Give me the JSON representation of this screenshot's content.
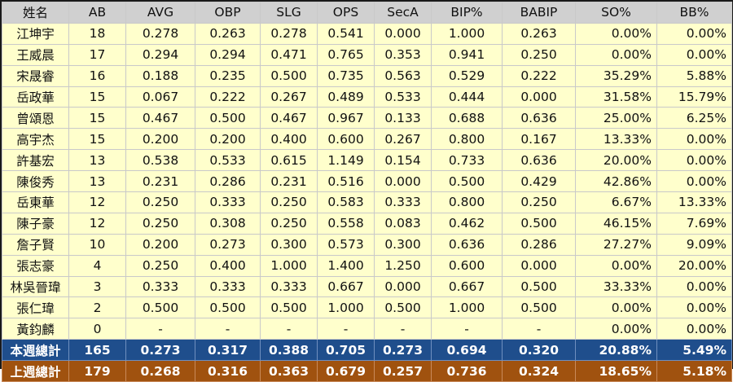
{
  "headers": [
    "姓名",
    "AB",
    "AVG",
    "OBP",
    "SLG",
    "OPS",
    "SecA",
    "BIP%",
    "BABIP",
    "SO%",
    "BB%"
  ],
  "players": [
    {
      "name": "江坤宇",
      "ab": "18",
      "avg": "0.278",
      "obp": "0.263",
      "slg": "0.278",
      "ops": "0.541",
      "seca": "0.000",
      "bip": "1.000",
      "babip": "0.263",
      "so": "0.00%",
      "bb": "0.00%"
    },
    {
      "name": "王威晨",
      "ab": "17",
      "avg": "0.294",
      "obp": "0.294",
      "slg": "0.471",
      "ops": "0.765",
      "seca": "0.353",
      "bip": "0.941",
      "babip": "0.250",
      "so": "0.00%",
      "bb": "0.00%"
    },
    {
      "name": "宋晟睿",
      "ab": "16",
      "avg": "0.188",
      "obp": "0.235",
      "slg": "0.500",
      "ops": "0.735",
      "seca": "0.563",
      "bip": "0.529",
      "babip": "0.222",
      "so": "35.29%",
      "bb": "5.88%"
    },
    {
      "name": "岳政華",
      "ab": "15",
      "avg": "0.067",
      "obp": "0.222",
      "slg": "0.267",
      "ops": "0.489",
      "seca": "0.533",
      "bip": "0.444",
      "babip": "0.000",
      "so": "31.58%",
      "bb": "15.79%"
    },
    {
      "name": "曾頌恩",
      "ab": "15",
      "avg": "0.467",
      "obp": "0.500",
      "slg": "0.467",
      "ops": "0.967",
      "seca": "0.133",
      "bip": "0.688",
      "babip": "0.636",
      "so": "25.00%",
      "bb": "6.25%"
    },
    {
      "name": "高宇杰",
      "ab": "15",
      "avg": "0.200",
      "obp": "0.200",
      "slg": "0.400",
      "ops": "0.600",
      "seca": "0.267",
      "bip": "0.800",
      "babip": "0.167",
      "so": "13.33%",
      "bb": "0.00%"
    },
    {
      "name": "許基宏",
      "ab": "13",
      "avg": "0.538",
      "obp": "0.533",
      "slg": "0.615",
      "ops": "1.149",
      "seca": "0.154",
      "bip": "0.733",
      "babip": "0.636",
      "so": "20.00%",
      "bb": "0.00%"
    },
    {
      "name": "陳俊秀",
      "ab": "13",
      "avg": "0.231",
      "obp": "0.286",
      "slg": "0.231",
      "ops": "0.516",
      "seca": "0.000",
      "bip": "0.500",
      "babip": "0.429",
      "so": "42.86%",
      "bb": "0.00%"
    },
    {
      "name": "岳東華",
      "ab": "12",
      "avg": "0.250",
      "obp": "0.333",
      "slg": "0.250",
      "ops": "0.583",
      "seca": "0.333",
      "bip": "0.800",
      "babip": "0.250",
      "so": "6.67%",
      "bb": "13.33%"
    },
    {
      "name": "陳子豪",
      "ab": "12",
      "avg": "0.250",
      "obp": "0.308",
      "slg": "0.250",
      "ops": "0.558",
      "seca": "0.083",
      "bip": "0.462",
      "babip": "0.500",
      "so": "46.15%",
      "bb": "7.69%"
    },
    {
      "name": "詹子賢",
      "ab": "10",
      "avg": "0.200",
      "obp": "0.273",
      "slg": "0.300",
      "ops": "0.573",
      "seca": "0.300",
      "bip": "0.636",
      "babip": "0.286",
      "so": "27.27%",
      "bb": "9.09%"
    },
    {
      "name": "張志豪",
      "ab": "4",
      "avg": "0.250",
      "obp": "0.400",
      "slg": "1.000",
      "ops": "1.400",
      "seca": "1.250",
      "bip": "0.600",
      "babip": "0.000",
      "so": "0.00%",
      "bb": "20.00%"
    },
    {
      "name": "林吳晉瑋",
      "ab": "3",
      "avg": "0.333",
      "obp": "0.333",
      "slg": "0.333",
      "ops": "0.667",
      "seca": "0.000",
      "bip": "0.667",
      "babip": "0.500",
      "so": "33.33%",
      "bb": "0.00%"
    },
    {
      "name": "張仁瑋",
      "ab": "2",
      "avg": "0.500",
      "obp": "0.500",
      "slg": "0.500",
      "ops": "1.000",
      "seca": "0.500",
      "bip": "1.000",
      "babip": "0.500",
      "so": "0.00%",
      "bb": "0.00%"
    },
    {
      "name": "黃鈞麟",
      "ab": "0",
      "avg": "-",
      "obp": "-",
      "slg": "-",
      "ops": "-",
      "seca": "-",
      "bip": "-",
      "babip": "-",
      "so": "0.00%",
      "bb": "0.00%"
    }
  ],
  "totals": [
    {
      "name": "本週總計",
      "ab": "165",
      "avg": "0.273",
      "obp": "0.317",
      "slg": "0.388",
      "ops": "0.705",
      "seca": "0.273",
      "bip": "0.694",
      "babip": "0.320",
      "so": "20.88%",
      "bb": "5.49%"
    },
    {
      "name": "上週總計",
      "ab": "179",
      "avg": "0.268",
      "obp": "0.316",
      "slg": "0.363",
      "ops": "0.679",
      "seca": "0.257",
      "bip": "0.736",
      "babip": "0.324",
      "so": "18.65%",
      "bb": "5.18%"
    }
  ],
  "colors": {
    "header_bg": "#d0d0d0",
    "row_bg": "#ffffcc",
    "this_week_bg": "#1f4e8c",
    "last_week_bg": "#a0520f"
  }
}
